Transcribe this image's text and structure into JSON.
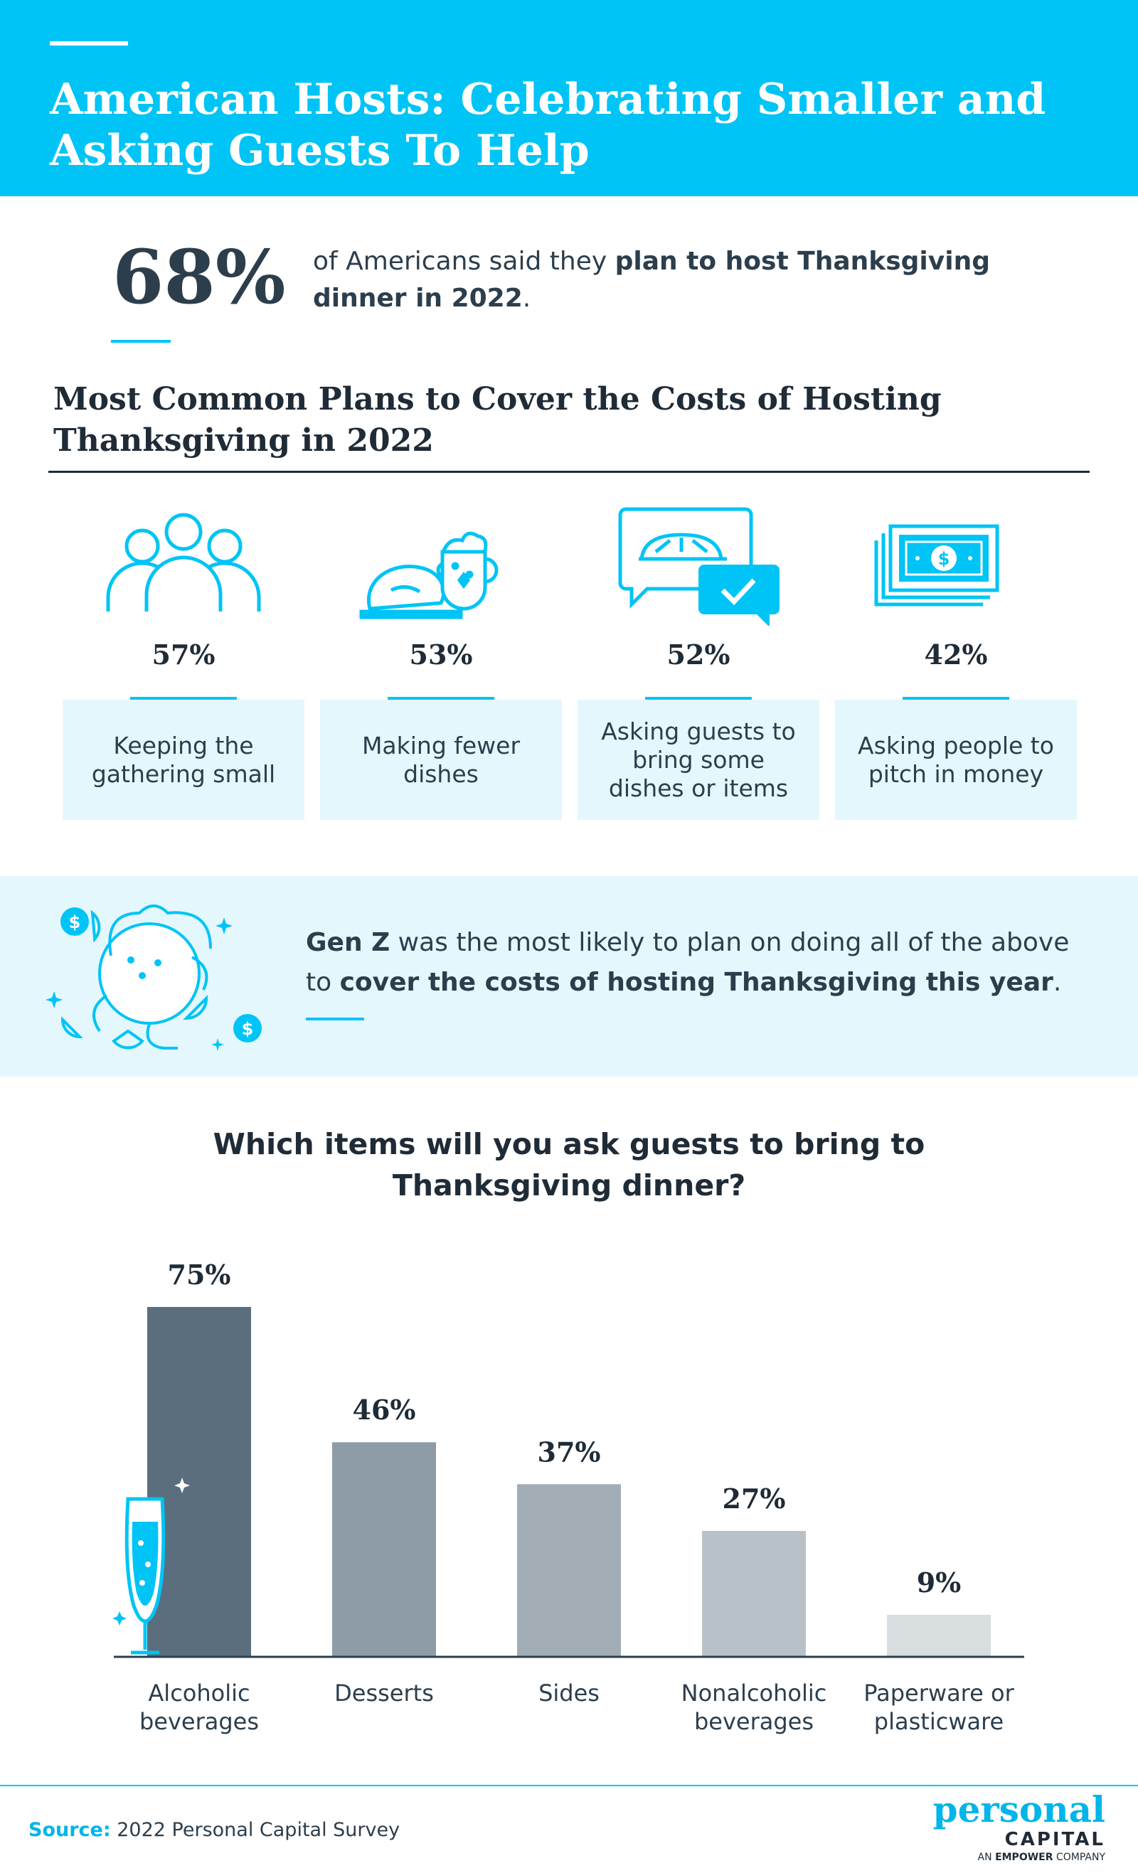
{
  "header": {
    "title": "American Hosts: Celebrating Smaller and Asking Guests To Help"
  },
  "stat": {
    "value": "68%",
    "text_pre": "of Americans said they ",
    "text_bold": "plan to host Thanksgiving dinner in 2022",
    "text_post": "."
  },
  "section": {
    "title": "Most Common Plans to Cover the Costs of Hosting Thanksgiving in 2022"
  },
  "plans": [
    {
      "pct": "57%",
      "label": "Keeping the gathering small",
      "icon": "people-group-icon"
    },
    {
      "pct": "53%",
      "label": "Making fewer dishes",
      "icon": "turkey-and-mug-icon"
    },
    {
      "pct": "52%",
      "label": "Asking guests to bring some dishes or items",
      "icon": "pie-chat-bubble-icon"
    },
    {
      "pct": "42%",
      "label": "Asking people to pitch in money",
      "icon": "money-stack-icon"
    }
  ],
  "genz": {
    "bold1": "Gen Z",
    "text1": " was the most likely to plan on doing all of the above to ",
    "bold2": "cover the costs of hosting Thanksgiving this year",
    "text2": ".",
    "icon": "turkey-money-illustration"
  },
  "chart_data": {
    "type": "bar",
    "title": "Which items will you ask guests to bring to Thanksgiving dinner?",
    "categories": [
      "Alcoholic beverages",
      "Desserts",
      "Sides",
      "Nonalcoholic beverages",
      "Paperware or plasticware"
    ],
    "values": [
      75,
      46,
      37,
      27,
      9
    ],
    "value_labels": [
      "75%",
      "46%",
      "37%",
      "27%",
      "9%"
    ],
    "unit": "%",
    "ylim": [
      0,
      100
    ],
    "grid": false,
    "legend": "none",
    "colors": [
      "#5a6e7d",
      "#8e9ca7",
      "#a1acb4",
      "#b8c1c7",
      "#d8dde0"
    ],
    "decoration_icon": "champagne-glass-icon"
  },
  "footer": {
    "source_label": "Source:",
    "source_text": "2022 Personal Capital Survey",
    "logo_line1": "personal",
    "logo_line2": "CAPITAL",
    "logo_line3_pre": "AN",
    "logo_line3_brand": "EMPOWER",
    "logo_line3_post": "COMPANY"
  },
  "colors": {
    "accent": "#00c4f5",
    "dark": "#1f2b36",
    "light_band": "#e4f7fd"
  }
}
